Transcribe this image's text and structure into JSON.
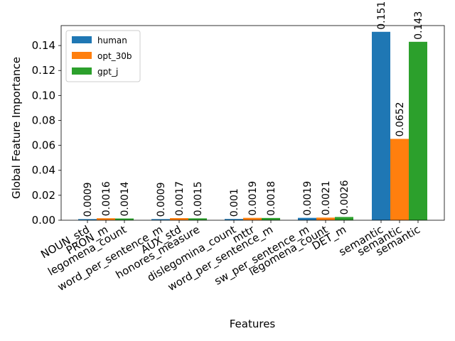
{
  "chart_data": {
    "type": "bar",
    "xlabel": "Features",
    "ylabel": "Global Feature Importance",
    "ylim": [
      0,
      0.156
    ],
    "yticks": [
      "0.00",
      "0.02",
      "0.04",
      "0.06",
      "0.08",
      "0.10",
      "0.12",
      "0.14"
    ],
    "legend_position": "top-left",
    "groups": [
      {
        "bars": [
          {
            "series": "human",
            "feature": "NOUN_std",
            "value": 0.0009,
            "label": "0.0009"
          },
          {
            "series": "opt_30b",
            "feature": "PRON_m",
            "value": 0.0016,
            "label": "0.0016"
          },
          {
            "series": "gpt_j",
            "feature": "legomena_count",
            "value": 0.0014,
            "label": "0.0014"
          }
        ]
      },
      {
        "bars": [
          {
            "series": "human",
            "feature": "word_per_sentence_m",
            "value": 0.0009,
            "label": "0.0009"
          },
          {
            "series": "opt_30b",
            "feature": "AUX_std",
            "value": 0.0017,
            "label": "0.0017"
          },
          {
            "series": "gpt_j",
            "feature": "honores_measure",
            "value": 0.0015,
            "label": "0.0015"
          }
        ]
      },
      {
        "bars": [
          {
            "series": "human",
            "feature": "dislegomina_count",
            "value": 0.001,
            "label": "0.001"
          },
          {
            "series": "opt_30b",
            "feature": "mttr",
            "value": 0.0019,
            "label": "0.0019"
          },
          {
            "series": "gpt_j",
            "feature": "word_per_sentence_m",
            "value": 0.0018,
            "label": "0.0018"
          }
        ]
      },
      {
        "bars": [
          {
            "series": "human",
            "feature": "sw_per_sentence_m",
            "value": 0.0019,
            "label": "0.0019"
          },
          {
            "series": "opt_30b",
            "feature": "legomena_count",
            "value": 0.0021,
            "label": "0.0021"
          },
          {
            "series": "gpt_j",
            "feature": "DET_m",
            "value": 0.0026,
            "label": "0.0026"
          }
        ]
      },
      {
        "bars": [
          {
            "series": "human",
            "feature": "semantic",
            "value": 0.151,
            "label": "0.151"
          },
          {
            "series": "opt_30b",
            "feature": "semantic",
            "value": 0.0652,
            "label": "0.0652"
          },
          {
            "series": "gpt_j",
            "feature": "semantic",
            "value": 0.143,
            "label": "0.143"
          }
        ]
      }
    ],
    "series": [
      {
        "name": "human",
        "color": "#1f77b4"
      },
      {
        "name": "opt_30b",
        "color": "#ff7f0e"
      },
      {
        "name": "gpt_j",
        "color": "#2ca02c"
      }
    ]
  }
}
